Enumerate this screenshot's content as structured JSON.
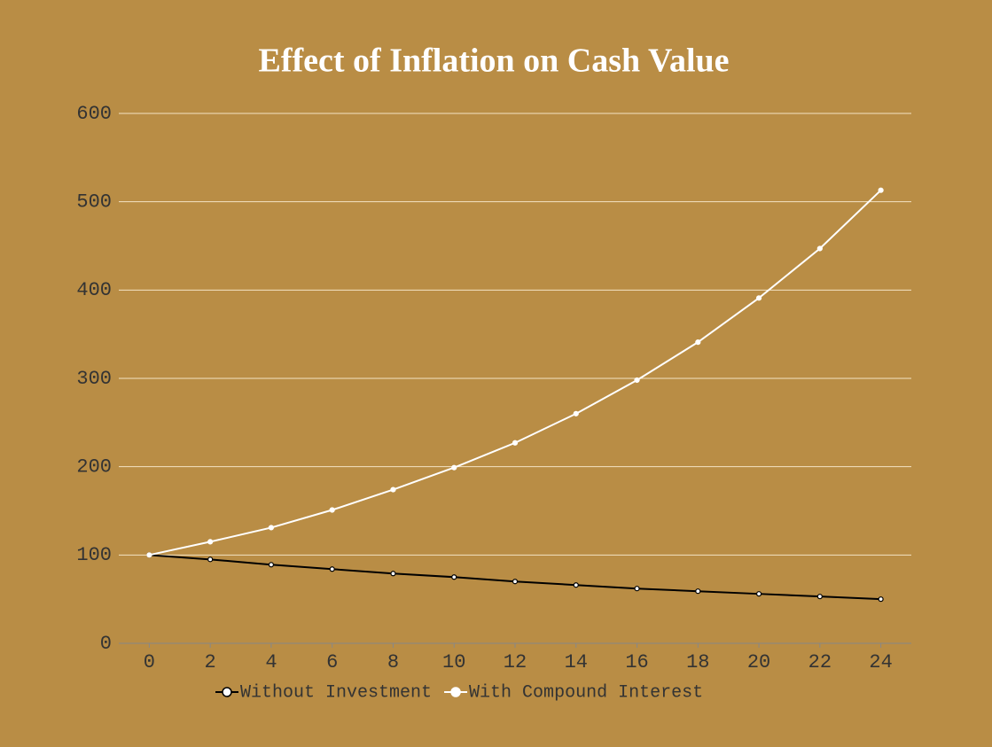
{
  "chart_data": {
    "type": "line",
    "title": "Effect of Inflation on Cash Value",
    "x": [
      0,
      2,
      4,
      6,
      8,
      10,
      12,
      14,
      16,
      18,
      20,
      22,
      24
    ],
    "series": [
      {
        "name": "Without Investment",
        "color": "#000000",
        "values": [
          100,
          95,
          89,
          84,
          79,
          75,
          70,
          66,
          62,
          59,
          56,
          53,
          50
        ]
      },
      {
        "name": "With Compound Interest",
        "color": "#ffffff",
        "values": [
          100,
          115,
          131,
          151,
          174,
          199,
          227,
          260,
          298,
          341,
          391,
          447,
          513
        ]
      }
    ],
    "xlim": [
      -1,
      25
    ],
    "xticks": [
      0,
      2,
      4,
      6,
      8,
      10,
      12,
      14,
      16,
      18,
      20,
      22,
      24
    ],
    "ylim": [
      0,
      600
    ],
    "yticks": [
      0,
      100,
      200,
      300,
      400,
      500,
      600
    ],
    "grid": true,
    "legend": "bottom"
  }
}
